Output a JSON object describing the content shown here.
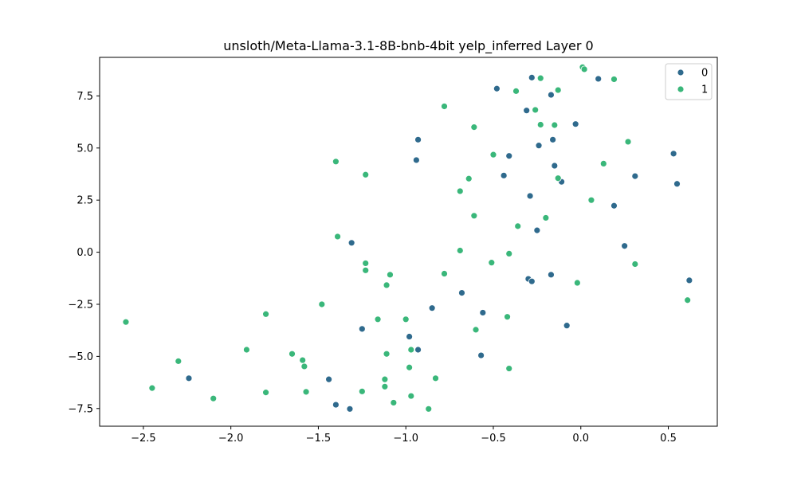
{
  "chart_data": {
    "type": "scatter",
    "title": "unsloth/Meta-Llama-3.1-8B-bnb-4bit yelp_inferred Layer 0",
    "xlabel": "",
    "ylabel": "",
    "xlim": [
      -2.75,
      0.78
    ],
    "ylim": [
      -8.35,
      9.35
    ],
    "grid": false,
    "legend_position": "top-right",
    "x_ticks": [
      -2.5,
      -2.0,
      -1.5,
      -1.0,
      -0.5,
      0.0,
      0.5
    ],
    "x_tick_labels": [
      "−2.5",
      "−2.0",
      "−1.5",
      "−1.0",
      "−0.5",
      "0.0",
      "0.5"
    ],
    "y_ticks": [
      -7.5,
      -5.0,
      -2.5,
      0.0,
      2.5,
      5.0,
      7.5
    ],
    "y_tick_labels": [
      "−7.5",
      "−5.0",
      "−2.5",
      "0.0",
      "2.5",
      "5.0",
      "7.5"
    ],
    "colors": {
      "0": "#2f6a8d",
      "1": "#3ab77a"
    },
    "series": [
      {
        "name": "0",
        "points": [
          [
            -0.28,
            8.38
          ],
          [
            0.1,
            8.32
          ],
          [
            -0.48,
            7.85
          ],
          [
            -0.17,
            7.55
          ],
          [
            -0.31,
            6.8
          ],
          [
            -0.03,
            6.15
          ],
          [
            -0.93,
            5.4
          ],
          [
            -0.16,
            5.4
          ],
          [
            -0.24,
            5.12
          ],
          [
            -0.41,
            4.62
          ],
          [
            -0.94,
            4.42
          ],
          [
            0.53,
            4.73
          ],
          [
            -0.15,
            4.15
          ],
          [
            -0.44,
            3.68
          ],
          [
            0.31,
            3.65
          ],
          [
            -0.11,
            3.38
          ],
          [
            0.55,
            3.28
          ],
          [
            -0.29,
            2.7
          ],
          [
            0.19,
            2.23
          ],
          [
            -0.25,
            1.05
          ],
          [
            -1.31,
            0.45
          ],
          [
            0.25,
            0.3
          ],
          [
            -0.17,
            -1.08
          ],
          [
            -0.3,
            -1.28
          ],
          [
            -0.28,
            -1.4
          ],
          [
            0.62,
            -1.35
          ],
          [
            -0.68,
            -1.95
          ],
          [
            -0.85,
            -2.68
          ],
          [
            -0.56,
            -2.9
          ],
          [
            -0.08,
            -3.52
          ],
          [
            -1.25,
            -3.68
          ],
          [
            -0.98,
            -4.05
          ],
          [
            -0.93,
            -4.68
          ],
          [
            -0.57,
            -4.95
          ],
          [
            -2.24,
            -6.05
          ],
          [
            -1.44,
            -6.1
          ],
          [
            -1.4,
            -7.32
          ],
          [
            -1.32,
            -7.52
          ]
        ]
      },
      {
        "name": "1",
        "points": [
          [
            0.01,
            8.88
          ],
          [
            0.02,
            8.78
          ],
          [
            -0.23,
            8.35
          ],
          [
            0.19,
            8.3
          ],
          [
            -0.13,
            7.78
          ],
          [
            -0.37,
            7.73
          ],
          [
            -0.78,
            7.0
          ],
          [
            -0.26,
            6.83
          ],
          [
            -0.23,
            6.12
          ],
          [
            -0.15,
            6.1
          ],
          [
            -0.61,
            6.0
          ],
          [
            0.27,
            5.3
          ],
          [
            -0.5,
            4.68
          ],
          [
            -1.4,
            4.35
          ],
          [
            0.13,
            4.25
          ],
          [
            -1.23,
            3.72
          ],
          [
            -0.13,
            3.55
          ],
          [
            -0.64,
            3.53
          ],
          [
            -0.69,
            2.93
          ],
          [
            0.06,
            2.5
          ],
          [
            -0.61,
            1.75
          ],
          [
            -0.2,
            1.65
          ],
          [
            -0.36,
            1.25
          ],
          [
            -1.39,
            0.75
          ],
          [
            -0.69,
            0.08
          ],
          [
            -0.41,
            -0.07
          ],
          [
            -1.23,
            -0.53
          ],
          [
            -0.51,
            -0.5
          ],
          [
            0.31,
            -0.57
          ],
          [
            -1.23,
            -0.87
          ],
          [
            -0.78,
            -1.03
          ],
          [
            -1.09,
            -1.08
          ],
          [
            -0.02,
            -1.47
          ],
          [
            -1.11,
            -1.58
          ],
          [
            -1.48,
            -2.5
          ],
          [
            0.61,
            -2.3
          ],
          [
            -1.8,
            -2.97
          ],
          [
            -0.42,
            -3.1
          ],
          [
            -1.16,
            -3.22
          ],
          [
            -1.0,
            -3.22
          ],
          [
            -0.6,
            -3.72
          ],
          [
            -1.91,
            -4.68
          ],
          [
            -0.97,
            -4.68
          ],
          [
            -1.11,
            -4.88
          ],
          [
            -1.65,
            -4.88
          ],
          [
            -1.59,
            -5.18
          ],
          [
            -1.58,
            -5.48
          ],
          [
            -2.3,
            -5.23
          ],
          [
            -0.98,
            -5.53
          ],
          [
            -0.41,
            -5.58
          ],
          [
            -1.12,
            -6.1
          ],
          [
            -0.83,
            -6.05
          ],
          [
            -1.12,
            -6.45
          ],
          [
            -2.45,
            -6.52
          ],
          [
            -1.8,
            -6.73
          ],
          [
            -1.57,
            -6.7
          ],
          [
            -1.25,
            -6.68
          ],
          [
            -0.97,
            -6.9
          ],
          [
            -2.1,
            -7.02
          ],
          [
            -1.07,
            -7.22
          ],
          [
            -0.87,
            -7.52
          ],
          [
            -2.6,
            -3.35
          ]
        ]
      }
    ]
  }
}
